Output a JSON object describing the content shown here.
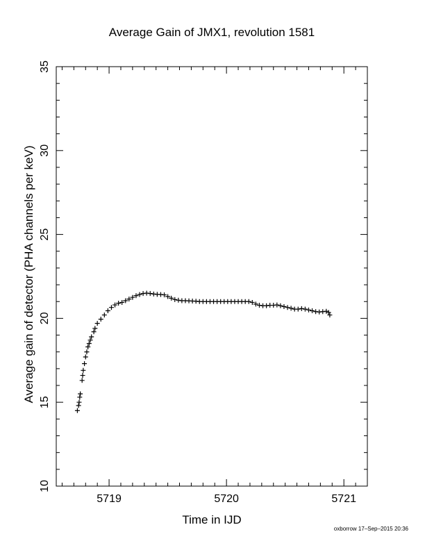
{
  "chart_data": {
    "type": "scatter",
    "title": "Average Gain of JMX1, revolution 1581",
    "xlabel": "Time in IJD",
    "ylabel": "Average gain of detector (PHA channels per keV)",
    "xlim": [
      5718.55,
      5721.2
    ],
    "ylim": [
      10,
      35
    ],
    "xticks": [
      5719,
      5720,
      5721
    ],
    "yticks": [
      10,
      15,
      20,
      25,
      30,
      35
    ],
    "marker": "+",
    "grid": false,
    "series": [
      {
        "values": [
          [
            5718.73,
            14.5
          ],
          [
            5718.74,
            14.8
          ],
          [
            5718.745,
            15.0
          ],
          [
            5718.75,
            15.3
          ],
          [
            5718.755,
            15.5
          ],
          [
            5718.77,
            16.3
          ],
          [
            5718.775,
            16.6
          ],
          [
            5718.78,
            16.9
          ],
          [
            5718.79,
            17.3
          ],
          [
            5718.8,
            17.7
          ],
          [
            5718.81,
            18.0
          ],
          [
            5718.82,
            18.3
          ],
          [
            5718.83,
            18.5
          ],
          [
            5718.84,
            18.7
          ],
          [
            5718.85,
            18.9
          ],
          [
            5718.87,
            19.2
          ],
          [
            5718.88,
            19.4
          ],
          [
            5718.9,
            19.7
          ],
          [
            5718.93,
            19.95
          ],
          [
            5718.96,
            20.2
          ],
          [
            5718.99,
            20.45
          ],
          [
            5719.02,
            20.65
          ],
          [
            5719.05,
            20.8
          ],
          [
            5719.08,
            20.9
          ],
          [
            5719.11,
            20.95
          ],
          [
            5719.14,
            21.05
          ],
          [
            5719.17,
            21.15
          ],
          [
            5719.2,
            21.25
          ],
          [
            5719.23,
            21.35
          ],
          [
            5719.26,
            21.42
          ],
          [
            5719.29,
            21.48
          ],
          [
            5719.32,
            21.5
          ],
          [
            5719.35,
            21.48
          ],
          [
            5719.38,
            21.45
          ],
          [
            5719.41,
            21.43
          ],
          [
            5719.44,
            21.42
          ],
          [
            5719.47,
            21.4
          ],
          [
            5719.5,
            21.3
          ],
          [
            5719.53,
            21.2
          ],
          [
            5719.56,
            21.12
          ],
          [
            5719.59,
            21.08
          ],
          [
            5719.62,
            21.05
          ],
          [
            5719.65,
            21.05
          ],
          [
            5719.68,
            21.04
          ],
          [
            5719.71,
            21.03
          ],
          [
            5719.74,
            21.02
          ],
          [
            5719.77,
            21.0
          ],
          [
            5719.8,
            21.0
          ],
          [
            5719.83,
            21.0
          ],
          [
            5719.86,
            21.0
          ],
          [
            5719.89,
            21.0
          ],
          [
            5719.92,
            21.0
          ],
          [
            5719.95,
            21.0
          ],
          [
            5719.98,
            21.0
          ],
          [
            5720.01,
            21.0
          ],
          [
            5720.04,
            21.0
          ],
          [
            5720.07,
            21.0
          ],
          [
            5720.1,
            21.0
          ],
          [
            5720.13,
            21.0
          ],
          [
            5720.16,
            21.0
          ],
          [
            5720.19,
            21.0
          ],
          [
            5720.22,
            20.95
          ],
          [
            5720.25,
            20.85
          ],
          [
            5720.28,
            20.78
          ],
          [
            5720.31,
            20.75
          ],
          [
            5720.34,
            20.75
          ],
          [
            5720.37,
            20.78
          ],
          [
            5720.4,
            20.78
          ],
          [
            5720.43,
            20.8
          ],
          [
            5720.46,
            20.75
          ],
          [
            5720.49,
            20.7
          ],
          [
            5720.52,
            20.65
          ],
          [
            5720.55,
            20.6
          ],
          [
            5720.58,
            20.55
          ],
          [
            5720.61,
            20.55
          ],
          [
            5720.64,
            20.58
          ],
          [
            5720.67,
            20.55
          ],
          [
            5720.7,
            20.5
          ],
          [
            5720.73,
            20.45
          ],
          [
            5720.76,
            20.4
          ],
          [
            5720.79,
            20.38
          ],
          [
            5720.82,
            20.4
          ],
          [
            5720.85,
            20.42
          ],
          [
            5720.87,
            20.35
          ],
          [
            5720.88,
            20.2
          ]
        ]
      }
    ]
  },
  "footer": "oxborrow 17–Sep–2015 20:36"
}
